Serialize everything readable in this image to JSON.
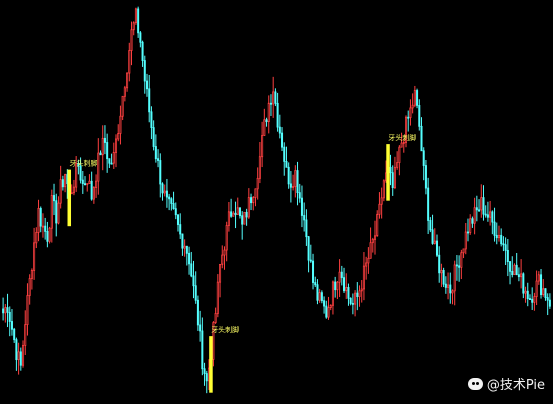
{
  "colors": {
    "background": "#000000",
    "up_candle": "#ff4040",
    "down_candle": "#54ffff",
    "signal_bar": "#ffff33",
    "signal_text": "#ffff66"
  },
  "watermark": {
    "icon": "paw-icon",
    "text": "@技术Pie"
  },
  "chart_data": {
    "type": "candlestick",
    "title": "",
    "xlabel": "",
    "ylabel": "",
    "grid": false,
    "ylim": [
      0,
      100
    ],
    "closes": [
      22,
      24,
      18,
      12,
      8,
      20,
      30,
      40,
      48,
      44,
      42,
      50,
      47,
      54,
      58,
      52,
      56,
      60,
      55,
      57,
      52,
      58,
      64,
      66,
      60,
      62,
      70,
      78,
      86,
      94,
      98,
      92,
      82,
      74,
      66,
      60,
      54,
      50,
      48,
      46,
      42,
      40,
      36,
      28,
      20,
      10,
      4,
      12,
      22,
      34,
      40,
      46,
      50,
      48,
      44,
      48,
      52,
      56,
      62,
      70,
      76,
      80,
      72,
      66,
      58,
      56,
      58,
      52,
      46,
      38,
      30,
      26,
      24,
      22,
      26,
      30,
      34,
      30,
      26,
      24,
      26,
      30,
      34,
      38,
      42,
      48,
      56,
      58,
      54,
      60,
      66,
      70,
      74,
      78,
      70,
      58,
      48,
      40,
      36,
      32,
      30,
      28,
      32,
      36,
      40,
      44,
      46,
      48,
      50,
      48,
      46,
      44,
      42,
      40,
      36,
      34,
      32,
      30,
      28,
      26,
      28,
      30,
      28,
      26,
      24
    ],
    "signals": [
      {
        "label": "牙头刺脚",
        "index": 15
      },
      {
        "label": "牙头刺脚",
        "index": 47
      },
      {
        "label": "牙头刺脚",
        "index": 87
      }
    ]
  }
}
